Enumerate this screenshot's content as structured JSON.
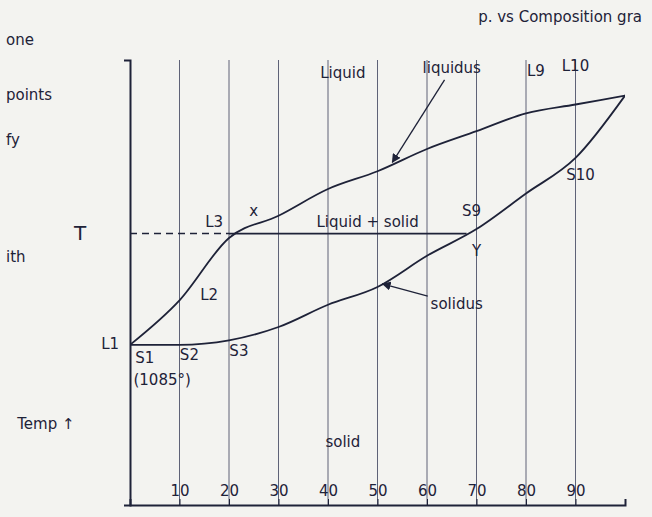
{
  "chart_data": {
    "type": "line",
    "x": [
      0,
      10,
      20,
      30,
      40,
      50,
      60,
      70,
      80,
      90,
      100
    ],
    "xlim": [
      0,
      100
    ],
    "xticks": [
      10,
      20,
      30,
      40,
      50,
      60,
      70,
      80,
      90
    ],
    "ylim": [
      0,
      100
    ],
    "yticks": [],
    "tick_labels": "x",
    "grid": "x",
    "series": [
      {
        "name": "liquidus",
        "color": "#1e2238",
        "values": [
          36,
          46,
          60,
          65,
          71,
          75,
          80,
          84,
          88,
          90,
          92
        ],
        "label_position": [
          65,
          97
        ],
        "arrow_to": [
          53,
          77
        ]
      },
      {
        "name": "solidus",
        "color": "#1e2238",
        "values": [
          36,
          36,
          37,
          40,
          45,
          49,
          56,
          62,
          70,
          78,
          92
        ],
        "label_position": [
          66,
          44
        ],
        "arrow_to": [
          51,
          49.7
        ]
      }
    ],
    "tie_line": {
      "label": "T",
      "y": 61,
      "x_liquid": 20,
      "x_solid": 68
    },
    "annotations": [
      {
        "text": "Liquid",
        "x": 43,
        "y": 96
      },
      {
        "text": "L9",
        "x": 82,
        "y": 96.5
      },
      {
        "text": "L10",
        "x": 90,
        "y": 97.5
      },
      {
        "text": "L3",
        "x": 17,
        "y": 62.5
      },
      {
        "text": "x",
        "x": 25,
        "y": 65
      },
      {
        "text": "Liquid + solid",
        "x": 48,
        "y": 62.5
      },
      {
        "text": "L2",
        "x": 16,
        "y": 46
      },
      {
        "text": "L1",
        "x": -4,
        "y": 35
      },
      {
        "text": "S1",
        "x": 3,
        "y": 32
      },
      {
        "text": "(1085°)",
        "x": 6.5,
        "y": 27
      },
      {
        "text": "S2",
        "x": 12,
        "y": 32.5
      },
      {
        "text": "S3",
        "x": 22,
        "y": 33.5
      },
      {
        "text": "S9",
        "x": 69,
        "y": 65
      },
      {
        "text": "Y",
        "x": 70,
        "y": 56
      },
      {
        "text": "S10",
        "x": 91,
        "y": 73
      },
      {
        "text": "solid",
        "x": 43,
        "y": 13
      },
      {
        "text": "Temp ↑",
        "x": -17,
        "y": 17
      }
    ],
    "margin_notes": [
      "one",
      "points",
      "fy",
      "ith"
    ],
    "header_fragment": "p. vs Composition gra"
  }
}
